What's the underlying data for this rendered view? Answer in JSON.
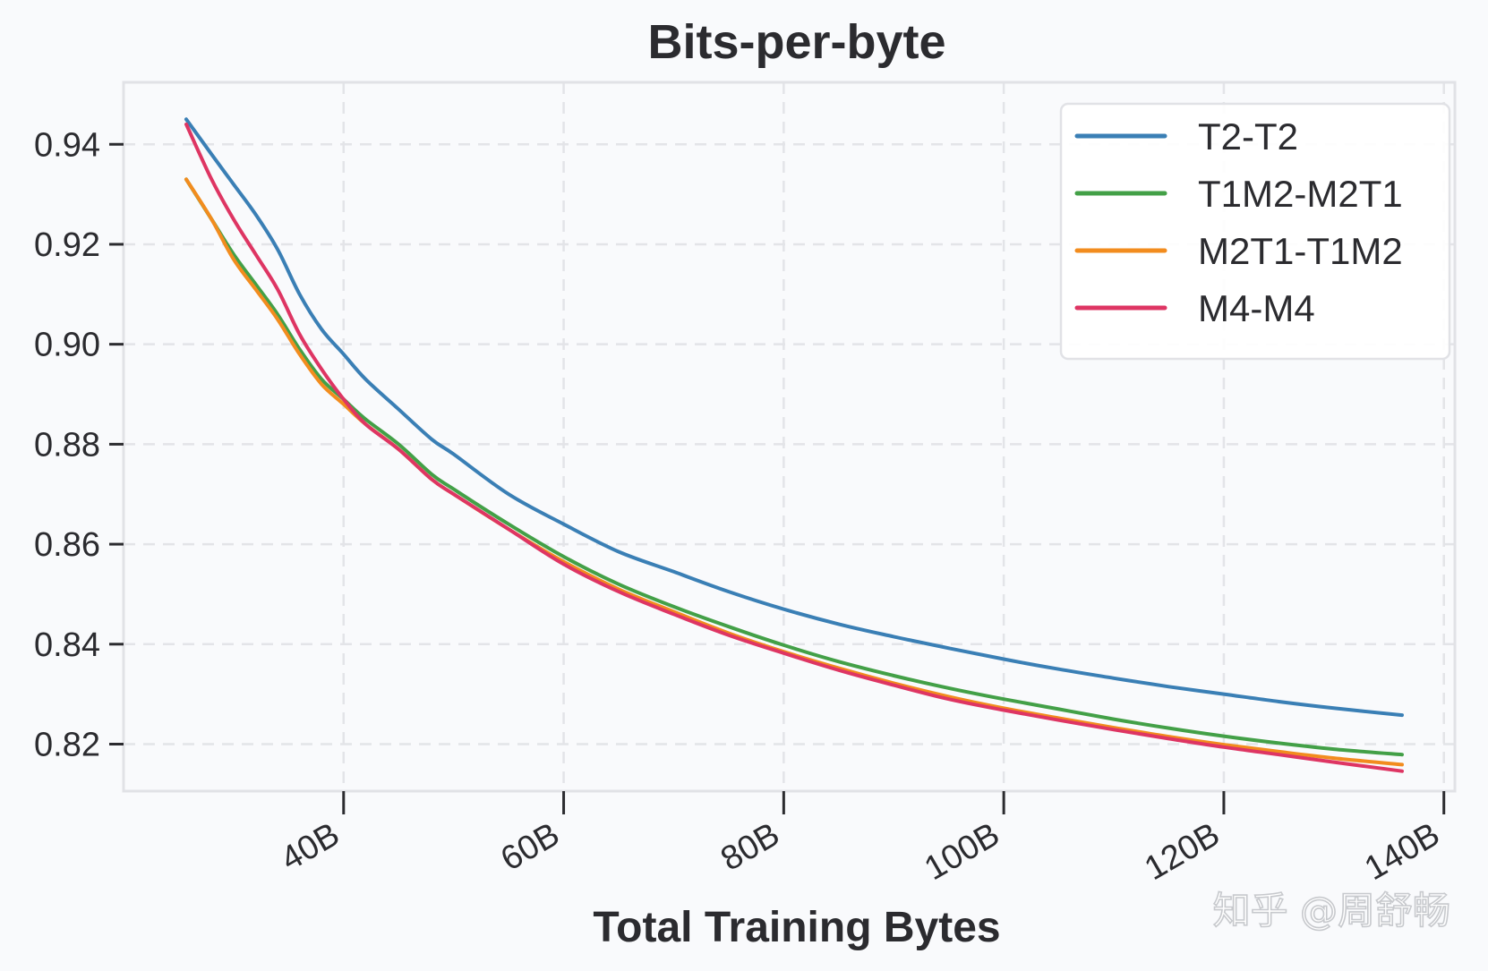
{
  "chart_data": {
    "type": "line",
    "title": "Bits-per-byte",
    "xlabel": "Total Training Bytes",
    "ylabel": "",
    "xlim": [
      20,
      141
    ],
    "ylim": [
      0.8106,
      0.9524
    ],
    "xticks": [
      40,
      60,
      80,
      100,
      120,
      140
    ],
    "xtick_labels": [
      "40B",
      "60B",
      "80B",
      "100B",
      "120B",
      "140B"
    ],
    "yticks": [
      0.82,
      0.84,
      0.86,
      0.88,
      0.9,
      0.92,
      0.94
    ],
    "ytick_labels": [
      "0.82",
      "0.84",
      "0.86",
      "0.88",
      "0.90",
      "0.92",
      "0.94"
    ],
    "grid": true,
    "legend_position": "top-right",
    "x": [
      25.7,
      28,
      30,
      32,
      34,
      36,
      38,
      40,
      42,
      45,
      48,
      50,
      55,
      60,
      65,
      70,
      75,
      80,
      85,
      90,
      95,
      100,
      105,
      110,
      115,
      120,
      125,
      130,
      136.2
    ],
    "series": [
      {
        "name": "T2-T2",
        "color": "#3a7fb5",
        "values": [
          0.945,
          0.938,
          0.932,
          0.926,
          0.919,
          0.91,
          0.903,
          0.898,
          0.893,
          0.887,
          0.881,
          0.878,
          0.87,
          0.864,
          0.8585,
          0.8545,
          0.8505,
          0.847,
          0.844,
          0.8415,
          0.8392,
          0.837,
          0.835,
          0.8332,
          0.8315,
          0.83,
          0.8285,
          0.8272,
          0.8258
        ]
      },
      {
        "name": "T1M2-M2T1",
        "color": "#43a047",
        "values": [
          0.933,
          0.925,
          0.918,
          0.912,
          0.906,
          0.899,
          0.893,
          0.889,
          0.885,
          0.88,
          0.874,
          0.871,
          0.864,
          0.8575,
          0.852,
          0.8475,
          0.8435,
          0.8398,
          0.8365,
          0.8337,
          0.8312,
          0.829,
          0.827,
          0.825,
          0.8232,
          0.8216,
          0.8202,
          0.819,
          0.8179
        ]
      },
      {
        "name": "M2T1-T1M2",
        "color": "#f28c1e",
        "values": [
          0.933,
          0.925,
          0.917,
          0.911,
          0.905,
          0.898,
          0.892,
          0.888,
          0.884,
          0.879,
          0.873,
          0.87,
          0.863,
          0.8565,
          0.851,
          0.8465,
          0.8422,
          0.8385,
          0.8352,
          0.8322,
          0.8295,
          0.8272,
          0.8252,
          0.8233,
          0.8215,
          0.8199,
          0.8185,
          0.8172,
          0.8159
        ]
      },
      {
        "name": "M4-M4",
        "color": "#de3563",
        "values": [
          0.944,
          0.933,
          0.925,
          0.918,
          0.911,
          0.902,
          0.895,
          0.889,
          0.884,
          0.879,
          0.873,
          0.87,
          0.863,
          0.856,
          0.8505,
          0.846,
          0.8418,
          0.8382,
          0.8348,
          0.8318,
          0.829,
          0.8268,
          0.8248,
          0.8229,
          0.8211,
          0.8194,
          0.8179,
          0.8164,
          0.8146
        ]
      }
    ]
  },
  "watermark": "知乎 @周舒畅"
}
